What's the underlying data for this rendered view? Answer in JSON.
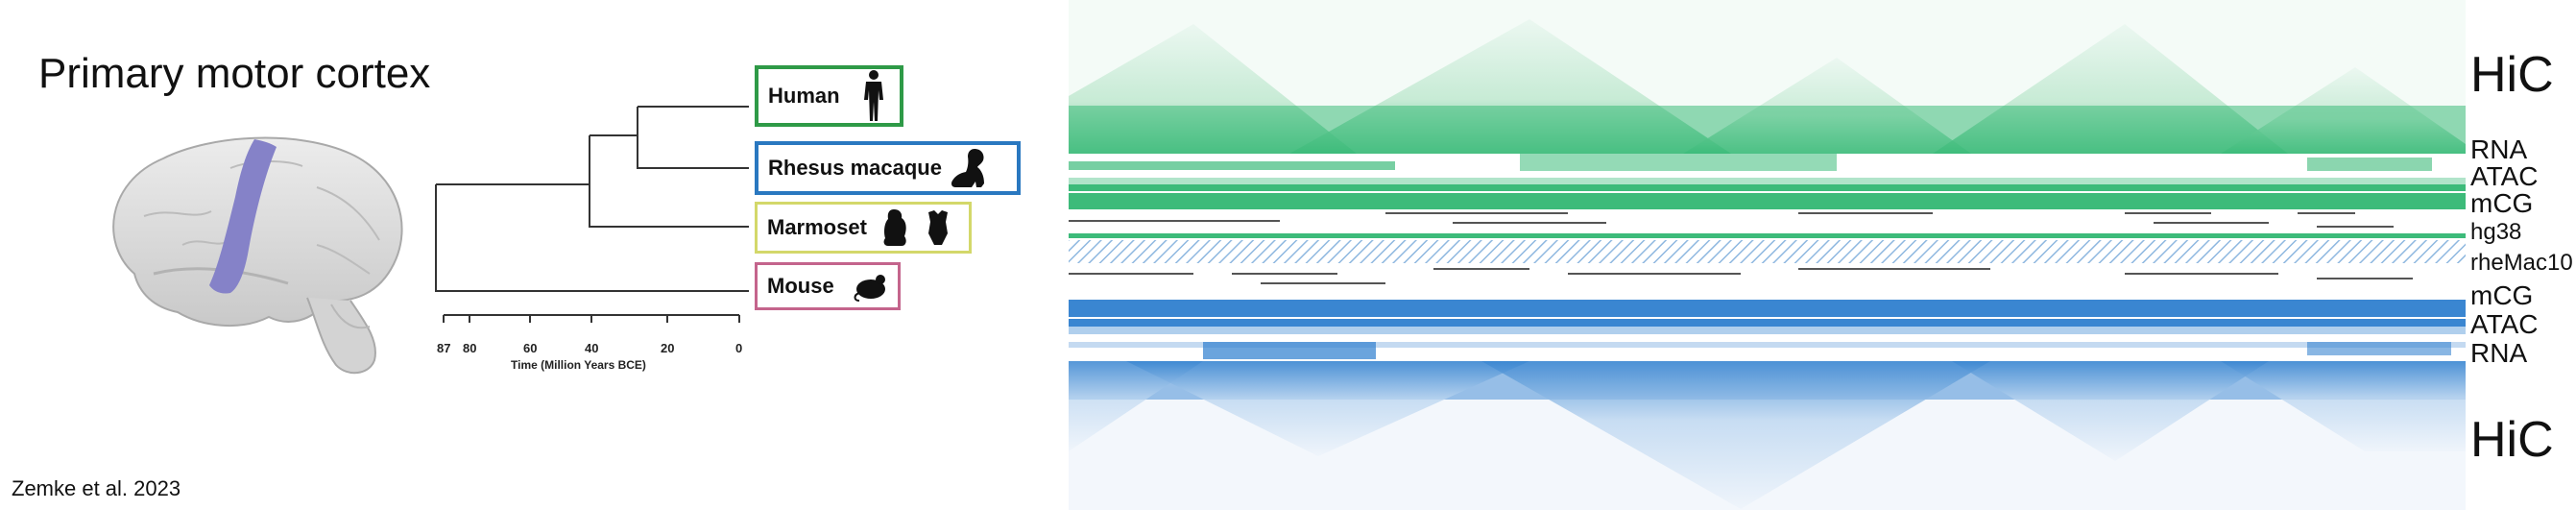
{
  "title": "Primary motor cortex",
  "citation": "Zemke et al. 2023",
  "phylogeny": {
    "axis_label": "Time (Million Years BCE)",
    "ticks": [
      "87",
      "80",
      "60",
      "40",
      "20",
      "0"
    ],
    "species": [
      {
        "name": "Human",
        "icon": "human-silhouette-icon",
        "color": "#2e9a47"
      },
      {
        "name": "Rhesus macaque",
        "icon": "macaque-silhouette-icon",
        "color": "#2a78c0"
      },
      {
        "name": "Marmoset",
        "icon": "marmoset-silhouette-icon",
        "color": "#d3d86a"
      },
      {
        "name": "Mouse",
        "icon": "mouse-silhouette-icon",
        "color": "#c4648c"
      }
    ]
  },
  "tracks": {
    "top_hic": "HiC",
    "top_rna": "RNA",
    "top_atac": "ATAC",
    "top_mcg": "mCG",
    "hg38": "hg38",
    "rhemac": "rheMac10",
    "bottom_mcg": "mCG",
    "bottom_atac": "ATAC",
    "bottom_rna": "RNA",
    "bottom_hic": "HiC"
  },
  "colors": {
    "human_green": "#3dbb7a",
    "macaque_blue": "#3a86d1",
    "brain_highlight": "#8582c8"
  }
}
